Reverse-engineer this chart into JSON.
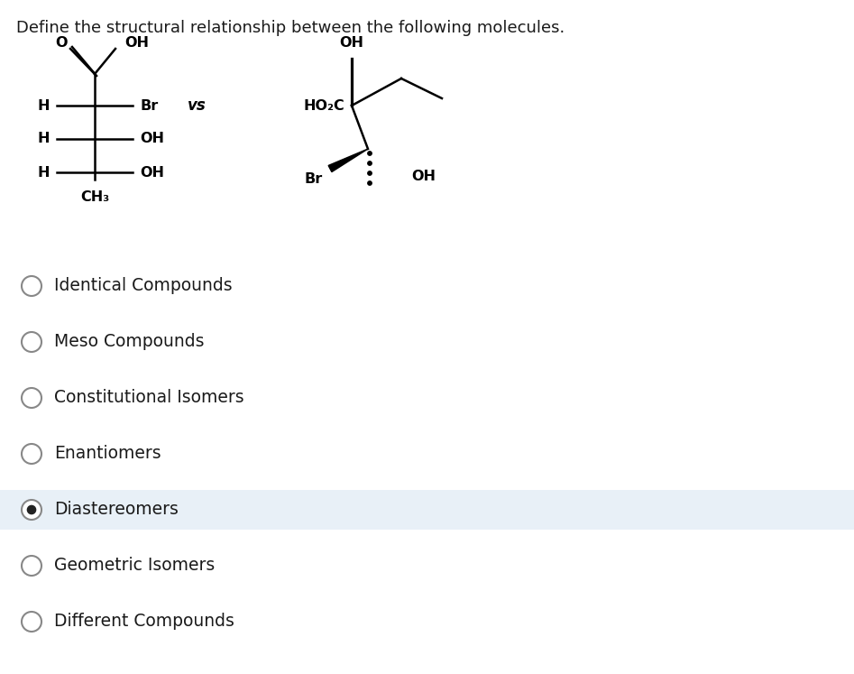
{
  "title": "Define the structural relationship between the following molecules.",
  "title_fontsize": 13,
  "background_color": "#ffffff",
  "options": [
    {
      "label": "Identical Compounds",
      "selected": false,
      "highlighted": false
    },
    {
      "label": "Meso Compounds",
      "selected": false,
      "highlighted": false
    },
    {
      "label": "Constitutional Isomers",
      "selected": false,
      "highlighted": false
    },
    {
      "label": "Enantiomers",
      "selected": false,
      "highlighted": false
    },
    {
      "label": "Diastereomers",
      "selected": true,
      "highlighted": true
    },
    {
      "label": "Geometric Isomers",
      "selected": false,
      "highlighted": false
    },
    {
      "label": "Different Compounds",
      "selected": false,
      "highlighted": false
    }
  ],
  "option_fontsize": 13.5,
  "highlight_color": "#e8f0f7",
  "circle_edge_color": "#888888",
  "selected_fill": "#222222",
  "unselected_fill": "#ffffff",
  "text_color": "#1a1a1a",
  "mol_fontsize": 11.5,
  "mol_fontweight": "bold",
  "lw": 1.8
}
